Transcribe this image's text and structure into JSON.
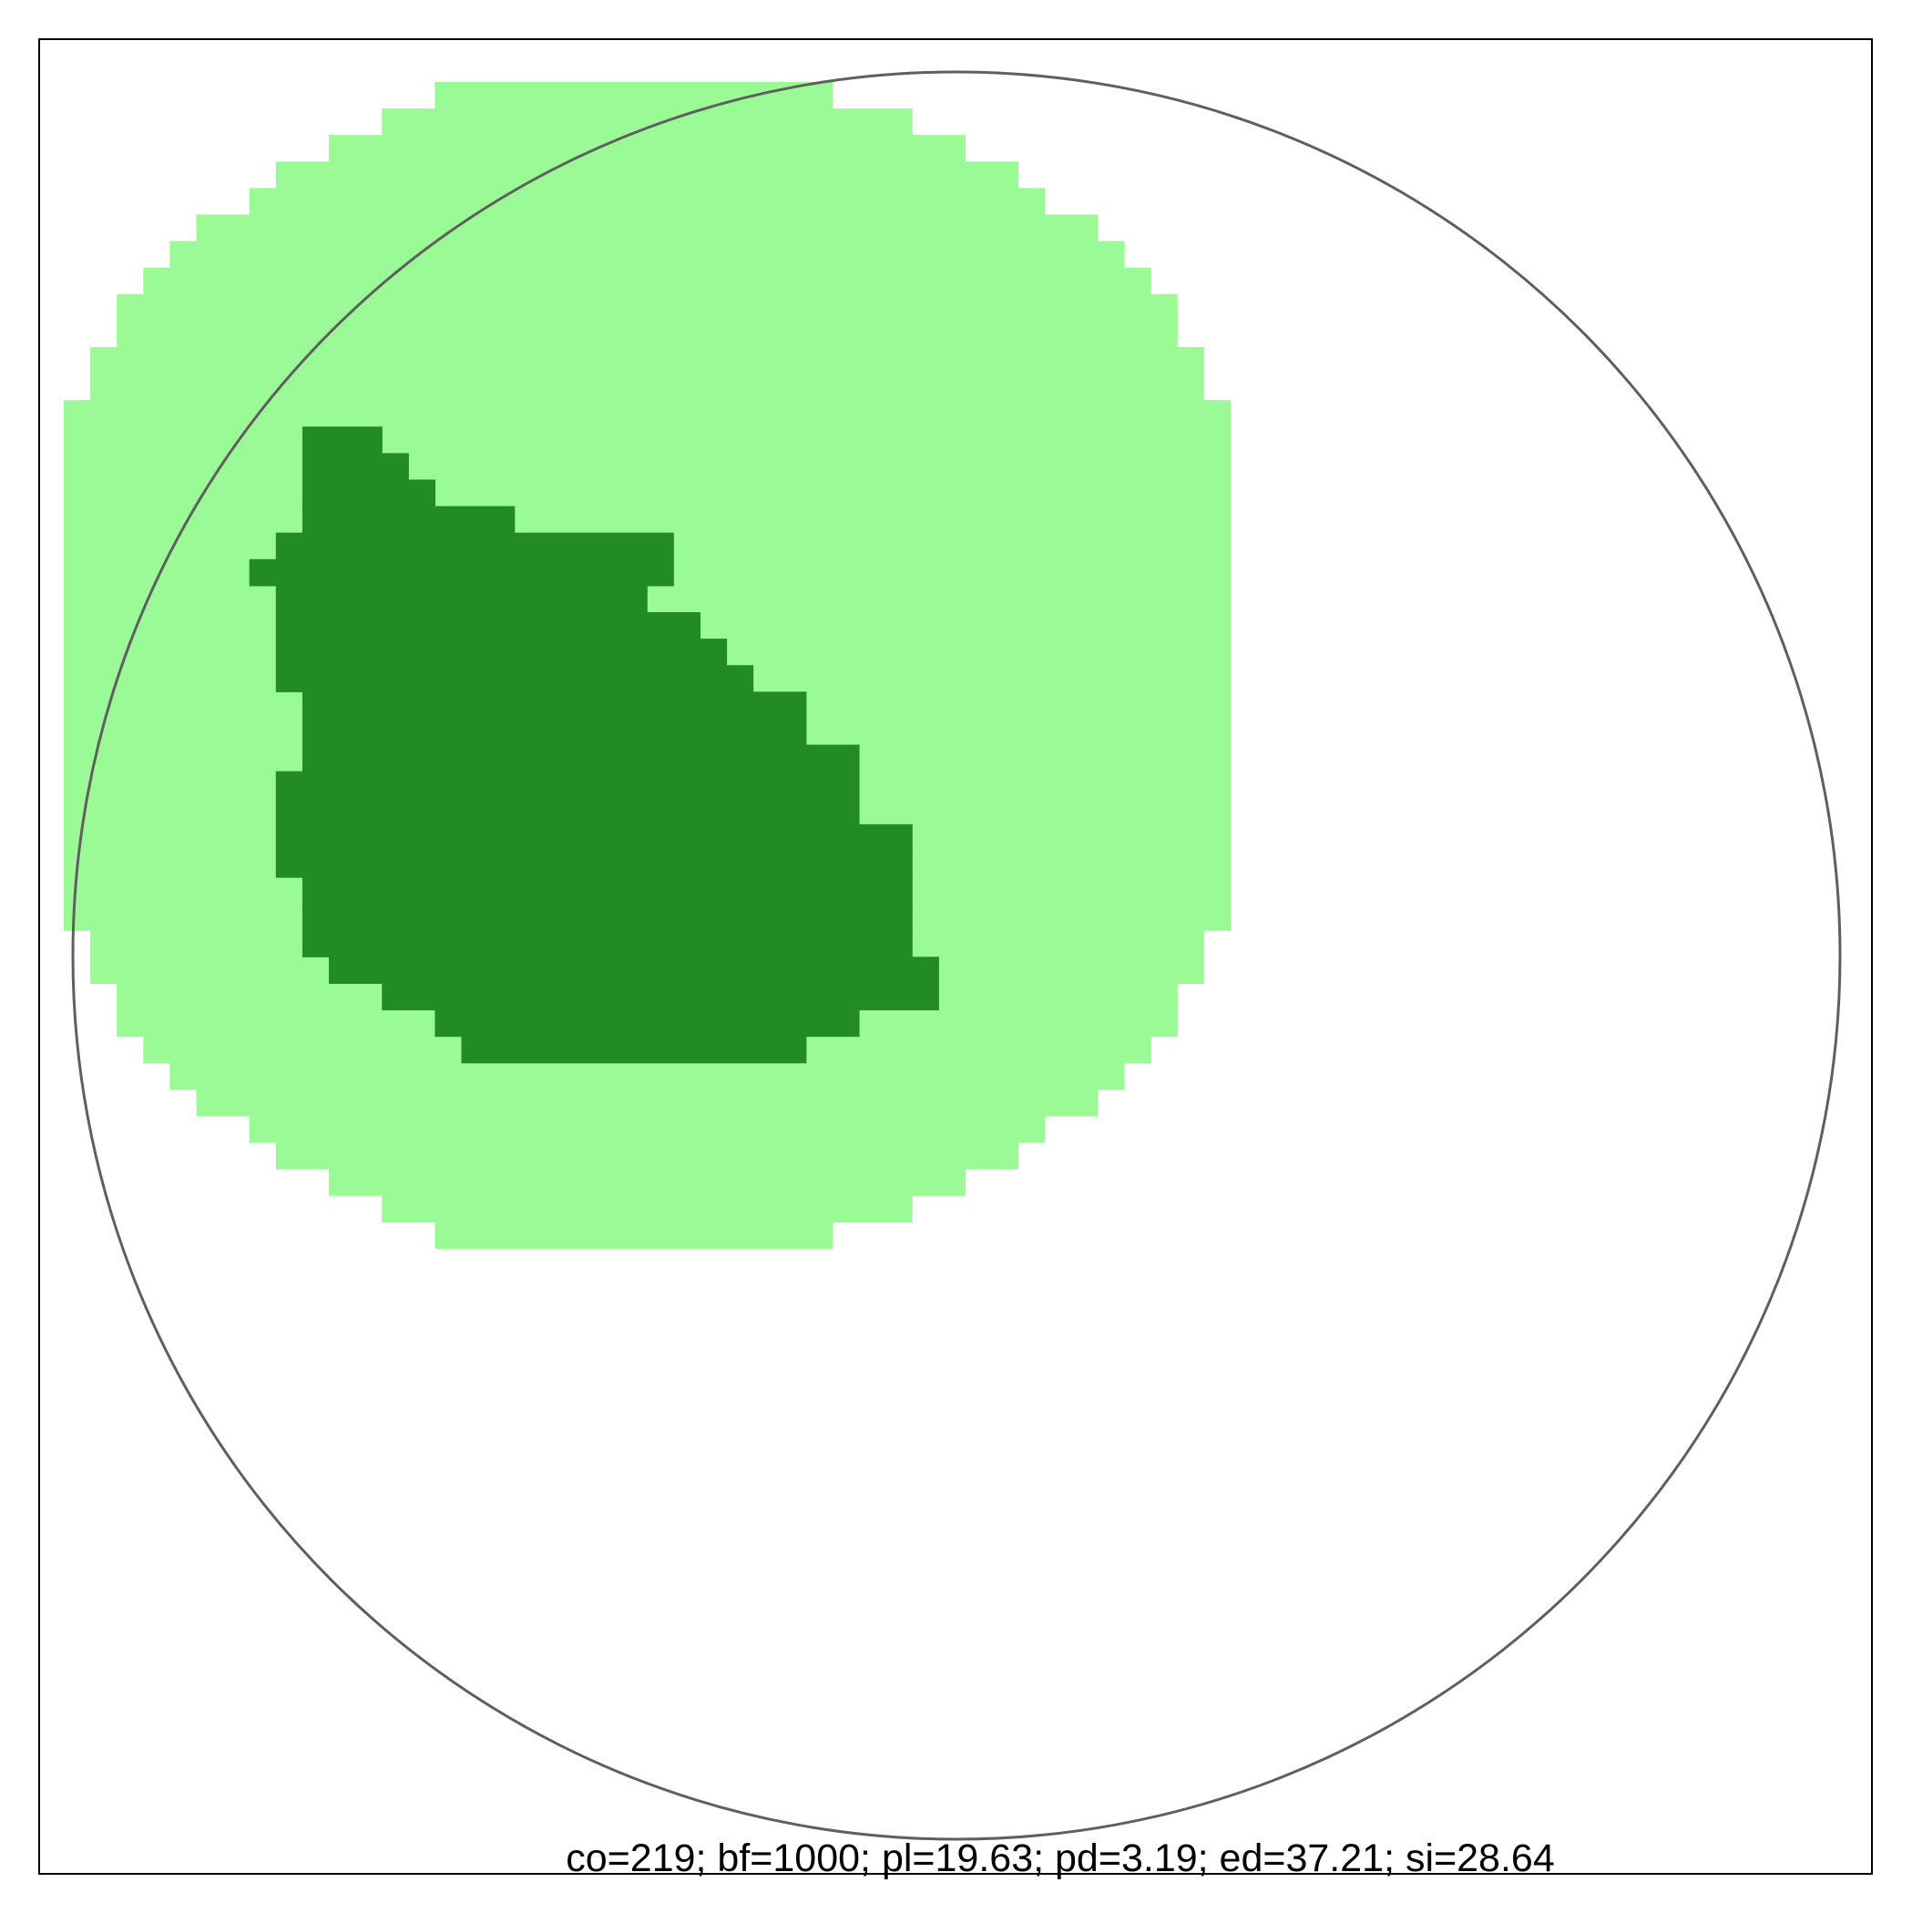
{
  "caption": "co=219; bf=1000; pl=19.63; pd=3.19; ed=37.21; si=28.64",
  "colors": {
    "background": "#ffffff",
    "light_cover": "#9afa96",
    "dark_cover": "#228b22",
    "circle_outline": "#5f5f5f",
    "frame": "#000000"
  },
  "raster": {
    "light_rows": [
      [
        14,
        29
      ],
      [
        12,
        32
      ],
      [
        10,
        34
      ],
      [
        8,
        36
      ],
      [
        7,
        37
      ],
      [
        5,
        39
      ],
      [
        4,
        40
      ],
      [
        3,
        41
      ],
      [
        2,
        42
      ],
      [
        2,
        42
      ],
      [
        1,
        43
      ],
      [
        1,
        43
      ],
      [
        0,
        44
      ],
      [
        0,
        44
      ],
      [
        0,
        44
      ],
      [
        0,
        44
      ],
      [
        0,
        44
      ],
      [
        0,
        44
      ],
      [
        0,
        44
      ],
      [
        0,
        44
      ],
      [
        0,
        44
      ],
      [
        0,
        44
      ],
      [
        0,
        44
      ],
      [
        0,
        44
      ],
      [
        0,
        44
      ],
      [
        0,
        44
      ],
      [
        0,
        44
      ],
      [
        0,
        44
      ],
      [
        0,
        44
      ],
      [
        0,
        44
      ],
      [
        0,
        44
      ],
      [
        0,
        44
      ],
      [
        1,
        43
      ],
      [
        1,
        43
      ],
      [
        2,
        42
      ],
      [
        2,
        42
      ],
      [
        3,
        41
      ],
      [
        4,
        40
      ],
      [
        5,
        39
      ],
      [
        7,
        37
      ],
      [
        8,
        36
      ],
      [
        10,
        34
      ],
      [
        12,
        32
      ],
      [
        14,
        29
      ]
    ],
    "dark_rows": [
      [],
      [],
      [],
      [],
      [],
      [],
      [],
      [],
      [],
      [],
      [],
      [],
      [],
      [
        [
          9,
          12
        ]
      ],
      [
        [
          9,
          13
        ]
      ],
      [
        [
          9,
          14
        ]
      ],
      [
        [
          9,
          17
        ]
      ],
      [
        [
          8,
          23
        ]
      ],
      [
        [
          7,
          23
        ]
      ],
      [
        [
          8,
          22
        ]
      ],
      [
        [
          8,
          24
        ]
      ],
      [
        [
          8,
          25
        ]
      ],
      [
        [
          8,
          26
        ]
      ],
      [
        [
          9,
          28
        ]
      ],
      [
        [
          9,
          28
        ]
      ],
      [
        [
          9,
          30
        ]
      ],
      [
        [
          8,
          30
        ]
      ],
      [
        [
          8,
          30
        ]
      ],
      [
        [
          8,
          32
        ]
      ],
      [
        [
          8,
          32
        ]
      ],
      [
        [
          9,
          32
        ]
      ],
      [
        [
          9,
          32
        ]
      ],
      [
        [
          9,
          32
        ]
      ],
      [
        [
          10,
          33
        ]
      ],
      [
        [
          12,
          33
        ]
      ],
      [
        [
          14,
          30
        ]
      ],
      [
        [
          15,
          28
        ]
      ],
      [],
      [],
      [],
      [],
      [],
      [],
      []
    ]
  }
}
